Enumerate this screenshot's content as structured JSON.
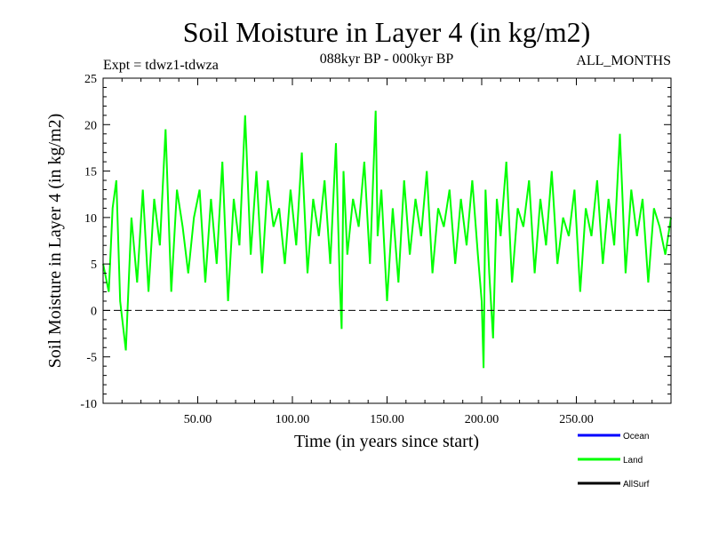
{
  "chart_data": {
    "type": "line",
    "title": "Soil Moisture in Layer 4 (in kg/m2)",
    "subtitle_left": "Expt = tdwz1-tdwza",
    "subtitle_center": "088kyr BP - 000kyr BP",
    "subtitle_right": "ALL_MONTHS",
    "xlabel": "Time (in years since start)",
    "ylabel": "Soil Moisture in Layer 4 (in kg/m2)",
    "xlim": [
      0,
      300
    ],
    "ylim": [
      -10,
      25
    ],
    "x_ticks": [
      50,
      100,
      150,
      200,
      250
    ],
    "x_tick_labels": [
      "50.00",
      "100.00",
      "150.00",
      "200.00",
      "250.00"
    ],
    "y_ticks": [
      -10,
      -5,
      0,
      5,
      10,
      15,
      20,
      25
    ],
    "y_tick_labels": [
      "-10",
      "-5",
      "0",
      "5",
      "10",
      "15",
      "20",
      "25"
    ],
    "reference_line": {
      "y": 0,
      "style": "dashed"
    },
    "legend_position": "bottom-right",
    "series": [
      {
        "name": "Ocean",
        "color": "#0000ff",
        "x": [],
        "values": []
      },
      {
        "name": "Land",
        "color": "#00ff00",
        "x": [
          0,
          3,
          5,
          7,
          9,
          12,
          15,
          18,
          21,
          24,
          27,
          30,
          33,
          36,
          39,
          42,
          45,
          48,
          51,
          54,
          57,
          60,
          63,
          66,
          69,
          72,
          75,
          78,
          81,
          84,
          87,
          90,
          93,
          96,
          99,
          102,
          105,
          108,
          111,
          114,
          117,
          120,
          123,
          125,
          126,
          127,
          129,
          132,
          135,
          138,
          141,
          144,
          145,
          147,
          150,
          153,
          156,
          159,
          162,
          165,
          168,
          171,
          174,
          177,
          180,
          183,
          186,
          189,
          192,
          195,
          198,
          200,
          201,
          202,
          204,
          206,
          208,
          210,
          213,
          216,
          219,
          222,
          225,
          228,
          231,
          234,
          237,
          240,
          243,
          246,
          249,
          252,
          255,
          258,
          261,
          264,
          267,
          270,
          273,
          276,
          279,
          282,
          285,
          288,
          291,
          294,
          297,
          300
        ],
        "values": [
          5,
          2,
          11,
          14,
          1,
          -4.3,
          10,
          3,
          13,
          2,
          12,
          7,
          19.5,
          2,
          13,
          9,
          4,
          10,
          13,
          3,
          12,
          5,
          16,
          1,
          12,
          7,
          21,
          6,
          15,
          4,
          14,
          9,
          11,
          5,
          13,
          7,
          17,
          4,
          12,
          8,
          14,
          5,
          18,
          3,
          -2,
          15,
          6,
          12,
          9,
          16,
          5,
          21.5,
          8,
          13,
          1,
          11,
          3,
          14,
          6,
          12,
          8,
          15,
          4,
          11,
          9,
          13,
          5,
          12,
          7,
          14,
          6,
          1,
          -6.2,
          13,
          4,
          -3,
          12,
          8,
          16,
          3,
          11,
          9,
          14,
          4,
          12,
          7,
          15,
          5,
          10,
          8,
          13,
          2,
          11,
          8,
          14,
          5,
          12,
          7,
          19,
          4,
          13,
          8,
          12,
          3,
          11,
          9,
          6,
          10
        ]
      },
      {
        "name": "AllSurf",
        "color": "#000000",
        "x": [],
        "values": []
      }
    ]
  }
}
